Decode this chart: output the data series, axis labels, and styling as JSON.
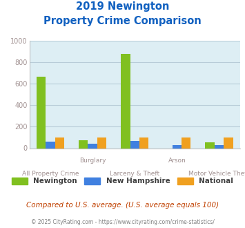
{
  "title_line1": "2019 Newington",
  "title_line2": "Property Crime Comparison",
  "categories": [
    "All Property Crime",
    "Burglary",
    "Larceny & Theft",
    "Arson",
    "Motor Vehicle Theft"
  ],
  "top_labels": [
    "",
    "Burglary",
    "",
    "Arson",
    ""
  ],
  "bottom_labels": [
    "All Property Crime",
    "",
    "Larceny & Theft",
    "",
    "Motor Vehicle Theft"
  ],
  "newington": [
    665,
    75,
    880,
    0,
    55
  ],
  "new_hampshire": [
    60,
    40,
    65,
    30,
    30
  ],
  "national": [
    100,
    100,
    100,
    100,
    100
  ],
  "color_newington": "#80c020",
  "color_nh": "#4080e0",
  "color_national": "#f0a020",
  "ylim": [
    0,
    1000
  ],
  "yticks": [
    0,
    200,
    400,
    600,
    800,
    1000
  ],
  "bg_color": "#ddeef4",
  "grid_color": "#b8ccd8",
  "title_color": "#1060c0",
  "axis_label_color": "#a09090",
  "legend_label_color": "#404040",
  "footer_note": "Compared to U.S. average. (U.S. average equals 100)",
  "footer_copy": "© 2025 CityRating.com - https://www.cityrating.com/crime-statistics/",
  "bar_width": 0.22
}
